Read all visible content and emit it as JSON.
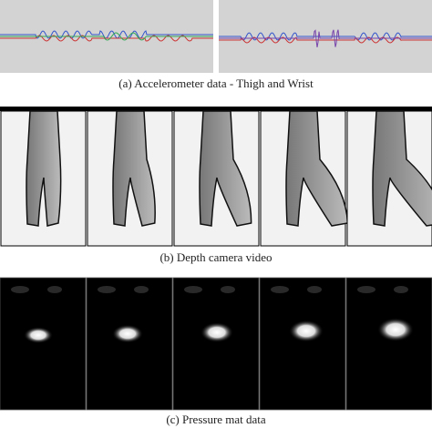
{
  "panels": [
    {
      "caption": "(a) Accelerometer data - Thigh and Wrist"
    },
    {
      "caption": "(b) Depth camera video"
    },
    {
      "caption": "(c) Pressure mat data"
    }
  ]
}
